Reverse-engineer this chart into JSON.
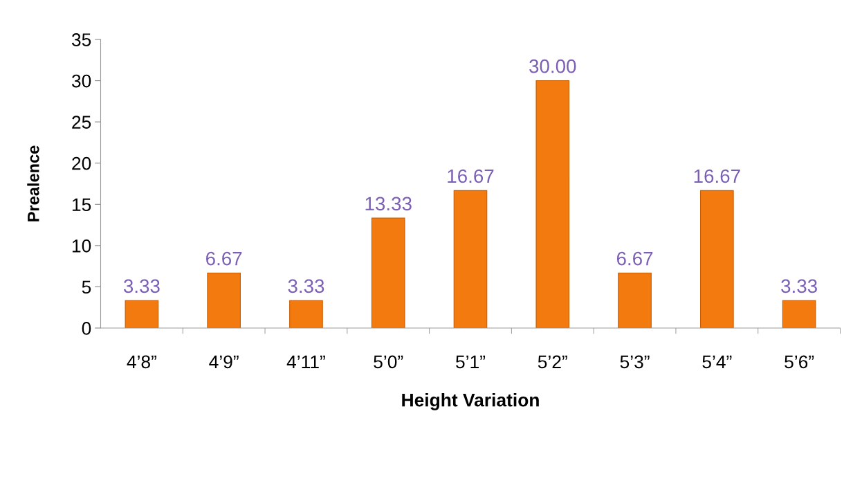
{
  "chart_data": {
    "type": "bar",
    "xlabel": "Height Variation",
    "ylabel": "Prealence",
    "categories": [
      "4’8”",
      "4’9”",
      "4’11”",
      "5’0”",
      "5’1”",
      "5’2”",
      "5’3”",
      "5’4”",
      "5’6”"
    ],
    "values": [
      3.33,
      6.67,
      3.33,
      13.33,
      16.67,
      30.0,
      6.67,
      16.67,
      3.33
    ],
    "value_labels": [
      "3.33",
      "6.67",
      "3.33",
      "13.33",
      "16.67",
      "30.00",
      "6.67",
      "16.67",
      "3.33"
    ],
    "color": "#f27a0f",
    "ylim": [
      0,
      35
    ],
    "yticks": [
      0,
      5,
      10,
      15,
      20,
      25,
      30,
      35
    ],
    "grid": false,
    "legend": false
  }
}
